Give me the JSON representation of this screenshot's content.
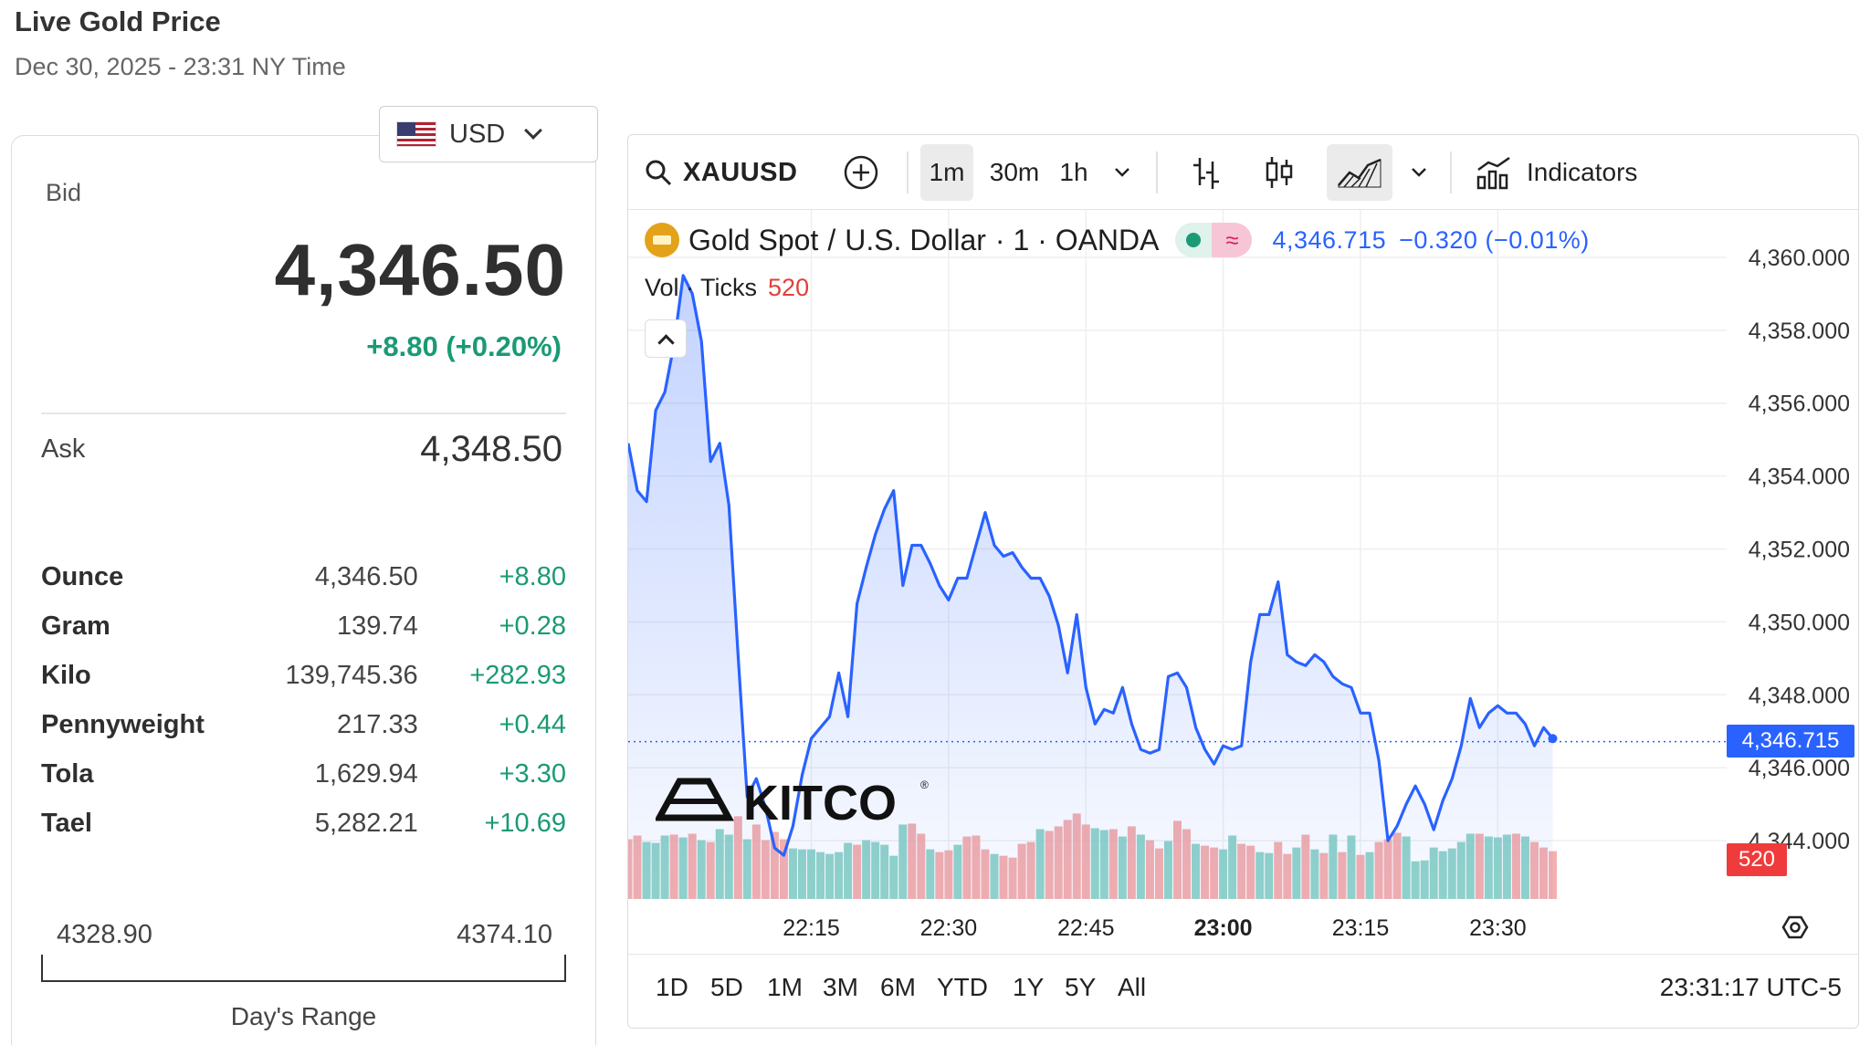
{
  "header": {
    "title": "Live Gold Price",
    "subtitle": "Dec 30, 2025 - 23:31 NY Time"
  },
  "price_panel": {
    "currency": "USD",
    "bid_label": "Bid",
    "bid_value": "4,346.50",
    "bid_change": "+8.80 (+0.20%)",
    "ask_label": "Ask",
    "ask_value": "4,348.50",
    "units": [
      {
        "name": "Ounce",
        "price": "4,346.50",
        "change": "+8.80"
      },
      {
        "name": "Gram",
        "price": "139.74",
        "change": "+0.28"
      },
      {
        "name": "Kilo",
        "price": "139,745.36",
        "change": "+282.93"
      },
      {
        "name": "Pennyweight",
        "price": "217.33",
        "change": "+0.44"
      },
      {
        "name": "Tola",
        "price": "1,629.94",
        "change": "+3.30"
      },
      {
        "name": "Tael",
        "price": "5,282.21",
        "change": "+10.69"
      }
    ],
    "range_low": "4328.90",
    "range_high": "4374.10",
    "range_label": "Day's Range",
    "up_color": "#1a9a75"
  },
  "chart_toolbar": {
    "symbol": "XAUUSD",
    "intervals": [
      "1m",
      "30m",
      "1h"
    ],
    "active_interval": "1m",
    "indicators_label": "Indicators"
  },
  "legend": {
    "instrument": "Gold Spot",
    "sep": "/",
    "quote": "U.S. Dollar",
    "meta": "· 1 · OANDA",
    "last": "4,346.715",
    "change": "−0.320 (−0.01%)",
    "vol_label": "Vol · Ticks",
    "vol_value": "520"
  },
  "watermark": "KITCO",
  "price_tag": "4,346.715",
  "vol_tag": "520",
  "range_buttons": [
    "1D",
    "5D",
    "1M",
    "3M",
    "6M",
    "YTD",
    "1Y",
    "5Y",
    "All"
  ],
  "clock": "23:31:17 UTC-5",
  "chart_data": {
    "type": "line",
    "title": "",
    "xlabel": "",
    "ylabel": "",
    "x_ticks": [
      "22:15",
      "22:30",
      "22:45",
      "23:00",
      "23:15",
      "23:30"
    ],
    "x_ticks_bold": "23:00",
    "y_ticks": [
      "4,344.000",
      "4,346.000",
      "4,348.000",
      "4,350.000",
      "4,352.000",
      "4,354.000",
      "4,356.000",
      "4,358.000",
      "4,360.000"
    ],
    "ylim": [
      4342.4,
      4361.3
    ],
    "x_minutes_range": [
      -20,
      100
    ],
    "line_color": "#2962ff",
    "area_color": "#2962ff",
    "up_vol_color": "#7fcdc0",
    "down_vol_color": "#f2a1a0",
    "last_value": 4346.715,
    "series": [
      {
        "name": "Gold Spot / U.S. Dollar",
        "values": [
          4354.9,
          4353.6,
          4353.3,
          4355.8,
          4356.3,
          4357.6,
          4359.5,
          4359.0,
          4357.7,
          4354.4,
          4354.9,
          4353.2,
          4349.1,
          4345.2,
          4345.7,
          4344.9,
          4343.8,
          4343.6,
          4344.4,
          4345.8,
          4346.8,
          4347.1,
          4347.4,
          4348.6,
          4347.4,
          4350.5,
          4351.5,
          4352.4,
          4353.1,
          4353.6,
          4351.0,
          4352.1,
          4352.1,
          4351.6,
          4351.0,
          4350.6,
          4351.2,
          4351.2,
          4352.1,
          4353.0,
          4352.1,
          4351.8,
          4351.9,
          4351.5,
          4351.2,
          4351.2,
          4350.7,
          4349.9,
          4348.6,
          4350.2,
          4348.2,
          4347.2,
          4347.6,
          4347.5,
          4348.2,
          4347.2,
          4346.5,
          4346.4,
          4346.5,
          4348.5,
          4348.6,
          4348.2,
          4347.1,
          4346.5,
          4346.1,
          4346.6,
          4346.5,
          4346.6,
          4348.9,
          4350.2,
          4350.2,
          4351.1,
          4349.1,
          4348.9,
          4348.8,
          4349.1,
          4348.9,
          4348.5,
          4348.3,
          4348.2,
          4347.5,
          4347.5,
          4346.2,
          4344.0,
          4344.4,
          4345.0,
          4345.5,
          4345.0,
          4344.3,
          4345.1,
          4345.7,
          4346.6,
          4347.9,
          4347.1,
          4347.5,
          4347.7,
          4347.5,
          4347.5,
          4347.2,
          4346.6,
          4347.1,
          4346.8
        ]
      },
      {
        "name": "Vol · Ticks",
        "values": [
          650,
          690,
          620,
          610,
          690,
          700,
          670,
          710,
          640,
          620,
          760,
          700,
          900,
          650,
          810,
          640,
          730,
          650,
          550,
          540,
          540,
          510,
          490,
          510,
          610,
          590,
          640,
          620,
          590,
          470,
          810,
          820,
          710,
          540,
          510,
          530,
          590,
          680,
          690,
          540,
          490,
          470,
          450,
          600,
          620,
          760,
          740,
          790,
          860,
          930,
          810,
          770,
          750,
          760,
          680,
          790,
          700,
          640,
          550,
          630,
          850,
          760,
          600,
          580,
          560,
          540,
          690,
          600,
          580,
          510,
          500,
          620,
          490,
          560,
          700,
          540,
          500,
          700,
          510,
          690,
          480,
          510,
          620,
          650,
          720,
          680,
          410,
          420,
          560,
          520,
          550,
          620,
          710,
          710,
          680,
          670,
          700,
          710,
          680,
          620,
          560,
          520
        ],
        "up": [
          false,
          false,
          true,
          true,
          true,
          false,
          true,
          false,
          true,
          false,
          true,
          true,
          false,
          true,
          false,
          false,
          false,
          false,
          true,
          true,
          true,
          true,
          true,
          true,
          true,
          false,
          true,
          true,
          true,
          true,
          true,
          false,
          false,
          true,
          false,
          false,
          true,
          false,
          false,
          false,
          true,
          false,
          false,
          false,
          false,
          true,
          false,
          false,
          false,
          false,
          false,
          true,
          true,
          false,
          true,
          false,
          true,
          false,
          false,
          true,
          false,
          false,
          true,
          false,
          false,
          true,
          true,
          false,
          false,
          true,
          true,
          false,
          false,
          true,
          false,
          true,
          false,
          true,
          false,
          true,
          false,
          true,
          false,
          false,
          false,
          true,
          true,
          true,
          true,
          true,
          true,
          true,
          true,
          false,
          true,
          true,
          true,
          false,
          true,
          false,
          false,
          false
        ]
      }
    ],
    "vol_max": 1000
  }
}
